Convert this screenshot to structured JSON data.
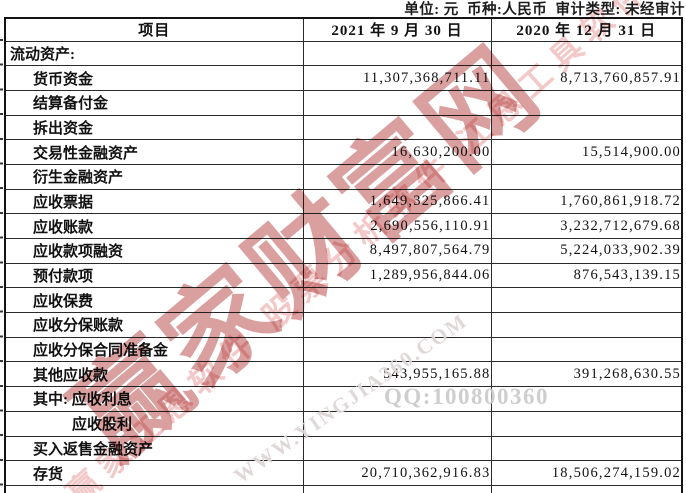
{
  "caption": "单位: 元  币种:人民币  审计类型: 未经审计",
  "table": {
    "headers": [
      "项目",
      "2021 年 9 月 30 日",
      "2020 年 12 月 31 日"
    ],
    "rows": [
      {
        "label": "流动资产:",
        "indent": 0,
        "col1": "",
        "col2": ""
      },
      {
        "label": "货币资金",
        "indent": 1,
        "col1": "11,307,368,711.11",
        "col2": "8,713,760,857.91"
      },
      {
        "label": "结算备付金",
        "indent": 1,
        "col1": "",
        "col2": ""
      },
      {
        "label": "拆出资金",
        "indent": 1,
        "col1": "",
        "col2": ""
      },
      {
        "label": "交易性金融资产",
        "indent": 1,
        "col1": "16,630,200.00",
        "col2": "15,514,900.00"
      },
      {
        "label": "衍生金融资产",
        "indent": 1,
        "col1": "",
        "col2": ""
      },
      {
        "label": "应收票据",
        "indent": 1,
        "col1": "1,649,325,866.41",
        "col2": "1,760,861,918.72"
      },
      {
        "label": "应收账款",
        "indent": 1,
        "col1": "2,690,556,110.91",
        "col2": "3,232,712,679.68"
      },
      {
        "label": "应收款项融资",
        "indent": 1,
        "col1": "8,497,807,564.79",
        "col2": "5,224,033,902.39"
      },
      {
        "label": "预付款项",
        "indent": 1,
        "col1": "1,289,956,844.06",
        "col2": "876,543,139.15"
      },
      {
        "label": "应收保费",
        "indent": 1,
        "col1": "",
        "col2": ""
      },
      {
        "label": "应收分保账款",
        "indent": 1,
        "col1": "",
        "col2": ""
      },
      {
        "label": "应收分保合同准备金",
        "indent": 1,
        "col1": "",
        "col2": ""
      },
      {
        "label": "其他应收款",
        "indent": 1,
        "col1": "543,955,165.88",
        "col2": "391,268,630.55"
      },
      {
        "label": "其中: 应收利息",
        "indent": 1,
        "col1": "",
        "col2": ""
      },
      {
        "label": "应收股利",
        "indent": 2,
        "col1": "",
        "col2": ""
      },
      {
        "label": "买入返售金融资产",
        "indent": 1,
        "col1": "",
        "col2": ""
      },
      {
        "label": "存货",
        "indent": 1,
        "col1": "20,710,362,916.83",
        "col2": "18,506,274,159.02"
      },
      {
        "label": "",
        "indent": 1,
        "col1": "",
        "col2": ""
      }
    ]
  },
  "watermarks": {
    "main": "赢家财富网",
    "line": "赢家江恩软件 股票分析软件 江恩工具软件",
    "url": "WWW.YINGJIA360.COM",
    "qq": "QQ:100800360"
  },
  "colors": {
    "watermark_red": "#bc5252",
    "watermark_pink": "#eba6a6",
    "watermark_gray": "#c9c9c9",
    "table_border": "#2a2a2a",
    "text": "#111111"
  }
}
